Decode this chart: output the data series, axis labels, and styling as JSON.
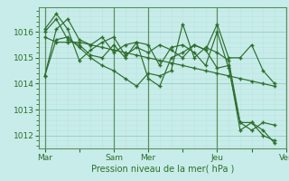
{
  "background_color": "#c8ece9",
  "grid_color_major": "#9dcfc9",
  "grid_color_minor": "#b8e4e0",
  "line_color": "#2d6e2d",
  "marker_color": "#2d6e2d",
  "xlabel": "Pression niveau de la mer( hPa )",
  "ylim": [
    1011.5,
    1016.95
  ],
  "yticks": [
    1012,
    1013,
    1014,
    1015,
    1016
  ],
  "xtick_labels": [
    "Mar",
    "",
    "Sam",
    "Mer",
    "",
    "Jeu",
    "",
    "Ven"
  ],
  "xtick_positions": [
    0,
    3,
    6,
    9,
    12,
    15,
    18,
    21
  ],
  "vline_positions": [
    0,
    6,
    9,
    15,
    21
  ],
  "series": [
    [
      1014.3,
      1016.1,
      1016.5,
      1015.7,
      1015.5,
      1015.8,
      1015.2,
      1015.5,
      1015.6,
      1015.5,
      1014.7,
      1015.4,
      1015.5,
      1015.2,
      1014.7,
      1016.0,
      1014.6,
      1012.5,
      1012.5,
      1012.2,
      1011.7
    ],
    [
      1015.8,
      1015.6,
      1015.6,
      1015.6,
      1015.5,
      1015.4,
      1015.3,
      1015.2,
      1015.1,
      1015.0,
      1014.9,
      1014.8,
      1014.7,
      1014.6,
      1014.5,
      1014.4,
      1014.3,
      1014.2,
      1014.1,
      1014.0,
      1013.9
    ],
    [
      1016.1,
      1016.7,
      1016.1,
      1014.9,
      1015.3,
      1015.6,
      1015.8,
      1015.1,
      1015.4,
      1015.2,
      1015.5,
      1015.3,
      1015.0,
      1015.5,
      1015.3,
      1016.3,
      1015.0,
      1015.0,
      1015.5,
      1014.5,
      1014.0
    ],
    [
      1014.3,
      1015.7,
      1015.8,
      1015.4,
      1015.0,
      1014.7,
      1014.5,
      1014.2,
      1013.9,
      1014.4,
      1014.3,
      1014.5,
      1016.3,
      1015.0,
      1015.4,
      1015.2,
      1014.9,
      1012.5,
      1012.2,
      1012.5,
      1012.4
    ],
    [
      1016.0,
      1016.5,
      1015.7,
      1015.5,
      1015.1,
      1015.0,
      1015.5,
      1015.0,
      1015.6,
      1014.2,
      1013.9,
      1015.0,
      1015.2,
      1015.5,
      1015.3,
      1014.6,
      1014.7,
      1012.2,
      1012.5,
      1012.0,
      1011.8
    ]
  ]
}
